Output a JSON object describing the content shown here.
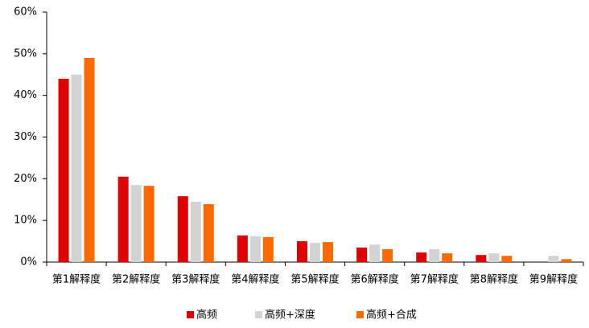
{
  "chart_data": {
    "type": "bar",
    "categories": [
      "第1解释度",
      "第2解释度",
      "第3解释度",
      "第4解释度",
      "第5解释度",
      "第6解释度",
      "第7解释度",
      "第8解释度",
      "第9解释度"
    ],
    "series": [
      {
        "name": "高频",
        "color": "#e00000",
        "values": [
          44.0,
          20.5,
          15.8,
          6.4,
          5.0,
          3.5,
          2.3,
          1.7,
          null
        ]
      },
      {
        "name": "高频+深度",
        "color": "#d3d3d3",
        "values": [
          45.0,
          18.5,
          14.5,
          6.2,
          4.6,
          4.2,
          3.1,
          2.1,
          1.5
        ]
      },
      {
        "name": "高频+合成",
        "color": "#ff6a00",
        "values": [
          49.0,
          18.3,
          13.9,
          6.0,
          4.8,
          3.1,
          2.1,
          1.5,
          0.7
        ]
      }
    ],
    "ylim": [
      0,
      60
    ],
    "yticks": [
      {
        "value": 0,
        "label": "0%"
      },
      {
        "value": 10,
        "label": "10%"
      },
      {
        "value": 20,
        "label": "20%"
      },
      {
        "value": 30,
        "label": "30%"
      },
      {
        "value": 40,
        "label": "40%"
      },
      {
        "value": 50,
        "label": "50%"
      },
      {
        "value": 60,
        "label": "60%"
      }
    ],
    "legend": "bottom"
  }
}
